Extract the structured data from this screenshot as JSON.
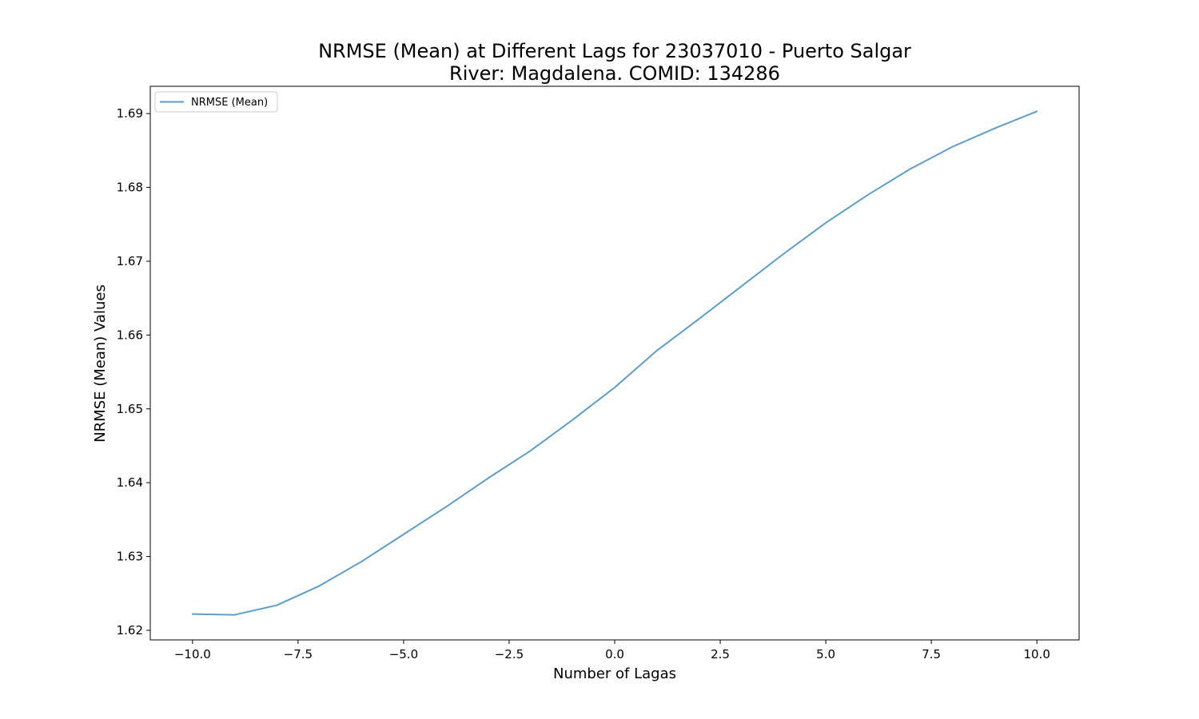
{
  "chart_data": {
    "type": "line",
    "title_lines": [
      "NRMSE (Mean) at Different Lags for 23037010 - Puerto Salgar",
      "River: Magdalena. COMID: 134286"
    ],
    "xlabel": "Number of Lagas",
    "ylabel": "NRMSE (Mean) Values",
    "xlim": [
      -11,
      11
    ],
    "ylim": [
      1.6187,
      1.6937
    ],
    "x_ticks": [
      -10,
      -7.5,
      -5,
      -2.5,
      0,
      2.5,
      5,
      7.5,
      10
    ],
    "x_tick_labels": [
      "−10.0",
      "−7.5",
      "−5.0",
      "−2.5",
      "0.0",
      "2.5",
      "5.0",
      "7.5",
      "10.0"
    ],
    "y_ticks": [
      1.62,
      1.63,
      1.64,
      1.65,
      1.66,
      1.67,
      1.68,
      1.69
    ],
    "y_tick_labels": [
      "1.62",
      "1.63",
      "1.64",
      "1.65",
      "1.66",
      "1.67",
      "1.68",
      "1.69"
    ],
    "grid": false,
    "legend_position": "top-left",
    "series": [
      {
        "name": "NRMSE (Mean)",
        "color": "#5c9dcb",
        "x": [
          -10,
          -9,
          -8,
          -7,
          -6,
          -5,
          -4,
          -3,
          -2,
          -1,
          0,
          1,
          2,
          3,
          4,
          5,
          6,
          7,
          8,
          9,
          10
        ],
        "y": [
          1.6222,
          1.6221,
          1.6234,
          1.626,
          1.6293,
          1.633,
          1.6367,
          1.6406,
          1.6443,
          1.6485,
          1.6529,
          1.6579,
          1.6622,
          1.6666,
          1.671,
          1.6752,
          1.679,
          1.6825,
          1.6855,
          1.688,
          1.6903
        ]
      }
    ]
  }
}
